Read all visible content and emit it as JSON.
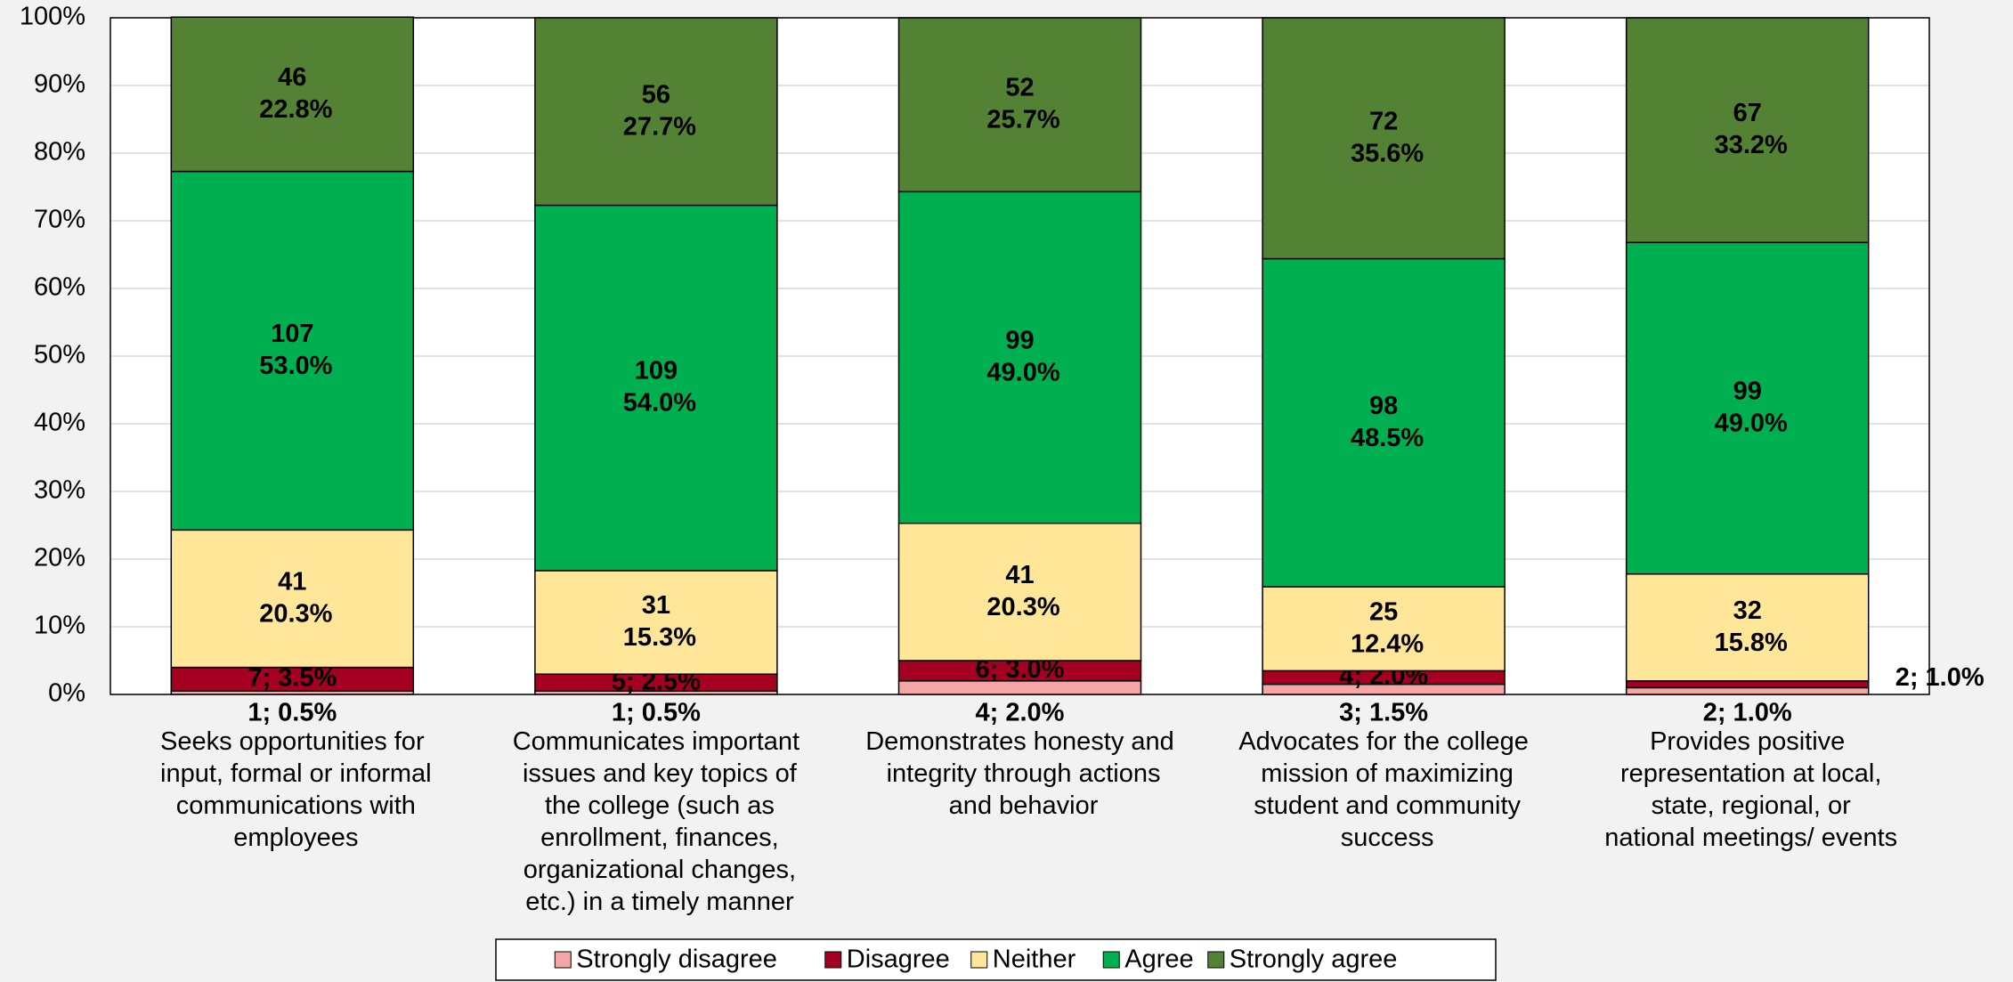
{
  "chart_data": {
    "type": "stacked_bar",
    "categories": [
      "Seeks opportunities for input, formal or informal communications with employees",
      "Communicates important issues and key topics of the college (such as enrollment, finances, organizational changes, etc.) in a timely manner",
      "Demonstrates honesty and integrity through actions and behavior",
      "Advocates for the college mission of maximizing student and community success",
      "Provides positive representation at local, state, regional, or national meetings/ events"
    ],
    "series": [
      {
        "name": "Strongly disagree",
        "color": "#f4a6a6",
        "values": [
          0.5,
          0.5,
          2.0,
          1.5,
          1.0
        ],
        "value_labels": [
          "1; 0.5%",
          "1; 0.5%",
          "4; 2.0%",
          "3; 1.5%",
          "2; 1.0%"
        ]
      },
      {
        "name": "Disagree",
        "color": "#a50021",
        "values": [
          3.5,
          2.5,
          3.0,
          2.0,
          1.0
        ],
        "value_labels": [
          "7; 3.5%",
          "5; 2.5%",
          "6; 3.0%",
          "4; 2.0%",
          "2; 1.0%"
        ]
      },
      {
        "name": "Neither",
        "color": "#ffe699",
        "values": [
          20.3,
          15.3,
          20.3,
          12.4,
          15.8
        ],
        "value_labels": [
          "41\n20.3%",
          "31\n15.3%",
          "41\n20.3%",
          "25\n12.4%",
          "32\n15.8%"
        ]
      },
      {
        "name": "Agree",
        "color": "#00b050",
        "values": [
          53.0,
          54.0,
          49.0,
          48.5,
          49.0
        ],
        "value_labels": [
          "107\n53.0%",
          "109\n54.0%",
          "99\n49.0%",
          "98\n48.5%",
          "99\n49.0%"
        ]
      },
      {
        "name": "Strongly agree",
        "color": "#548235",
        "values": [
          22.8,
          27.7,
          25.7,
          35.6,
          33.2
        ],
        "value_labels": [
          "46\n22.8%",
          "56\n27.7%",
          "52\n25.7%",
          "72\n35.6%",
          "67\n33.2%"
        ]
      }
    ],
    "ylim": [
      0,
      100
    ],
    "yticks": [
      {
        "value": 0,
        "label": "0%"
      },
      {
        "value": 10,
        "label": "10%"
      },
      {
        "value": 20,
        "label": "20%"
      },
      {
        "value": 30,
        "label": "30%"
      },
      {
        "value": 40,
        "label": "40%"
      },
      {
        "value": 50,
        "label": "50%"
      },
      {
        "value": 60,
        "label": "60%"
      },
      {
        "value": 70,
        "label": "70%"
      },
      {
        "value": 80,
        "label": "80%"
      },
      {
        "value": 90,
        "label": "90%"
      },
      {
        "value": 100,
        "label": "100%"
      }
    ],
    "grid": true,
    "legend": "bottom"
  }
}
